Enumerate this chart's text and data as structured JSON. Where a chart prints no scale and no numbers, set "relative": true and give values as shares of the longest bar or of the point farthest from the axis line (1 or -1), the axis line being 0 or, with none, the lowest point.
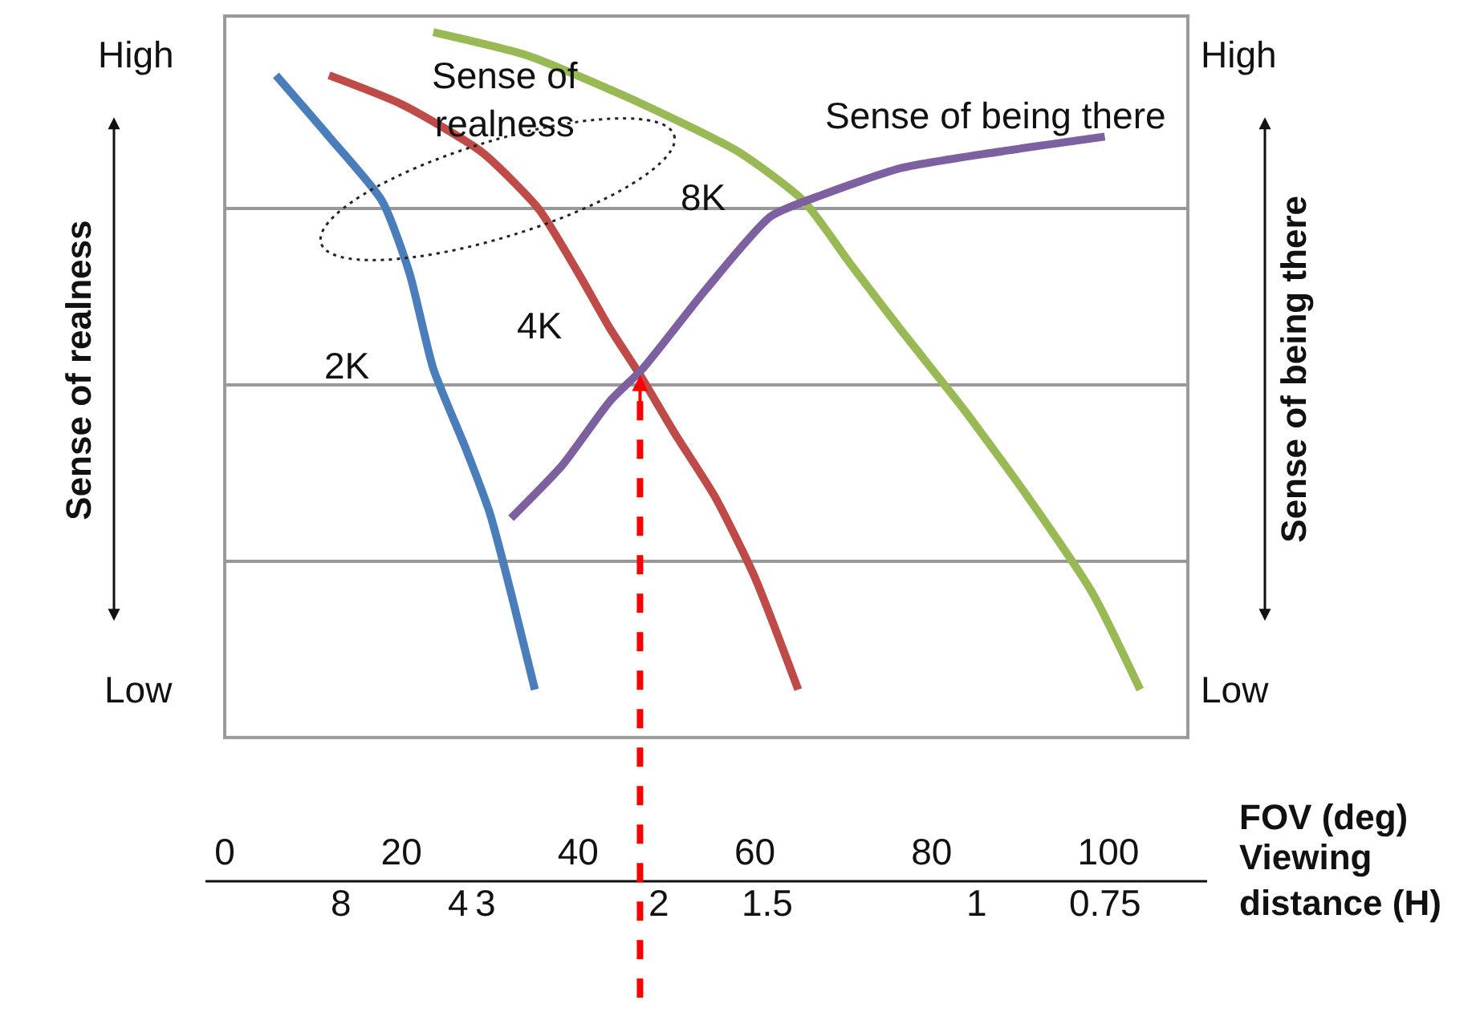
{
  "chart_data": {
    "type": "line",
    "relative": true,
    "xlabel": "FOV (deg)",
    "x2label": "Viewing distance (H)",
    "ylabel": "Sense of realness",
    "y2label": "Sense of being there",
    "xlim": [
      0,
      109
    ],
    "xticks": [
      0,
      20,
      40,
      60,
      80,
      100
    ],
    "grid": "y",
    "legend": false,
    "annotations": [
      "Sense of realness",
      "High",
      "Low",
      "High",
      "Low",
      "8",
      "4",
      "3",
      "2",
      "1.5",
      "1",
      "0.75"
    ],
    "ref_lines": [
      {
        "axis": "x",
        "value": 47,
        "color": "#ff0000",
        "line_style": "dashed"
      }
    ],
    "series": [
      {
        "name": "2K",
        "color": "#4a7ebb",
        "x": [
          5.8,
          11.8,
          17.8,
          20.9,
          23.6,
          27.3,
          30,
          32.4,
          35.1
        ],
        "values": [
          0.939,
          0.852,
          0.761,
          0.659,
          0.523,
          0.409,
          0.318,
          0.205,
          0.068
        ]
      },
      {
        "name": "4K",
        "color": "#be4b48",
        "x": [
          11.8,
          20,
          29.1,
          35.5,
          40,
          43.6,
          46.9,
          50.9,
          55.5,
          60,
          64.9
        ],
        "values": [
          0.939,
          0.898,
          0.83,
          0.75,
          0.659,
          0.58,
          0.516,
          0.432,
          0.341,
          0.227,
          0.068
        ]
      },
      {
        "name": "8K",
        "color": "#98b954",
        "x": [
          23.6,
          34.5,
          47.3,
          58.2,
          65.5,
          70.9,
          76.4,
          83.6,
          90.9,
          98.2,
          103.6
        ],
        "values": [
          1.0,
          0.966,
          0.898,
          0.83,
          0.761,
          0.67,
          0.58,
          0.466,
          0.341,
          0.205,
          0.068
        ]
      },
      {
        "name": "Sense of being there",
        "color": "#7d60a0",
        "x": [
          32.4,
          38.2,
          43.6,
          47.3,
          54.5,
          61.8,
          67.3,
          76.4,
          87.3,
          99.6
        ],
        "values": [
          0.311,
          0.386,
          0.477,
          0.523,
          0.636,
          0.739,
          0.768,
          0.807,
          0.83,
          0.852
        ]
      }
    ]
  }
}
